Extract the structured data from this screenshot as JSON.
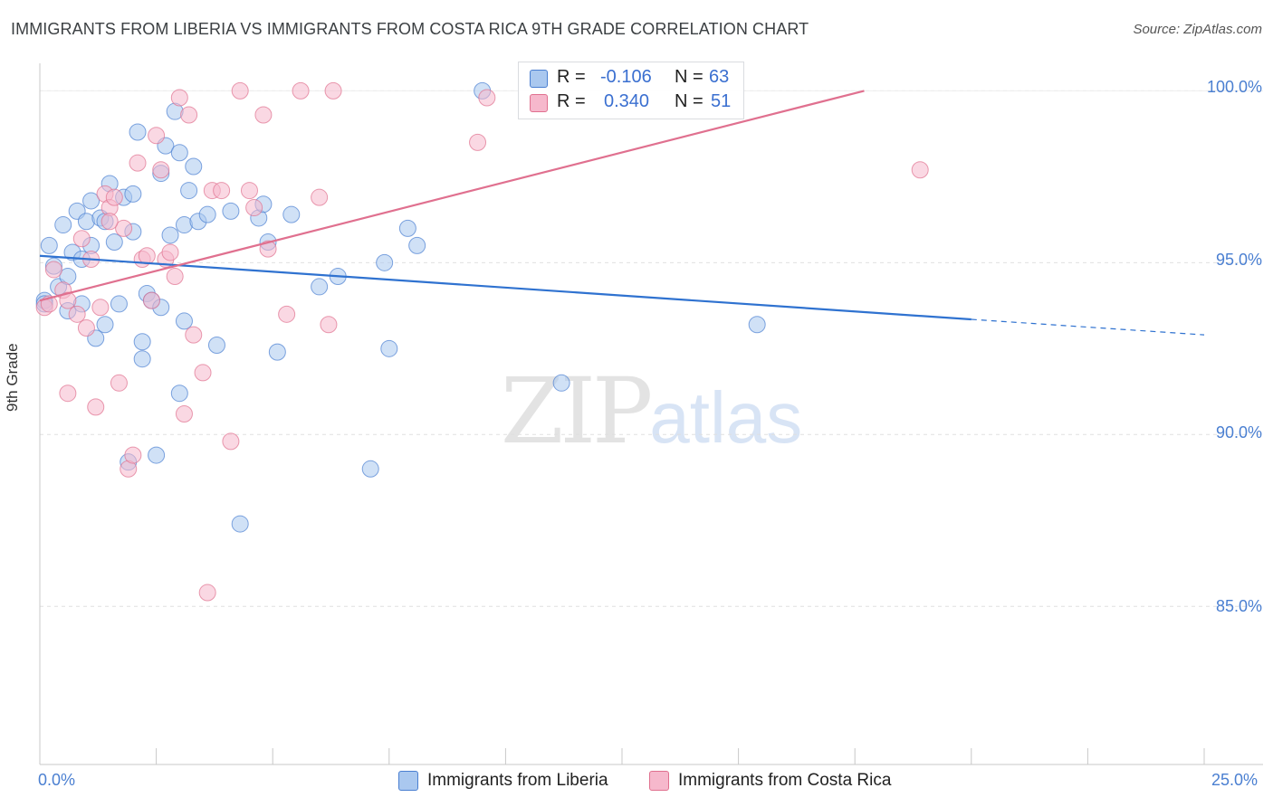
{
  "header": {
    "title": "IMMIGRANTS FROM LIBERIA VS IMMIGRANTS FROM COSTA RICA 9TH GRADE CORRELATION CHART",
    "source": "Source: ZipAtlas.com"
  },
  "watermark": {
    "zip": "ZIP",
    "atlas": "atlas"
  },
  "colors": {
    "blue": "#4a7fd1",
    "blue_fill": "#aac8ef",
    "blue_line": "#2f72d0",
    "pink_fill": "#f6b8cc",
    "pink_line": "#e0708f",
    "grid": "#e0e0e0"
  },
  "legend": {
    "rows": [
      {
        "r_label": "R =",
        "r_value": "-0.106",
        "n_label": "N =",
        "n_value": "63"
      },
      {
        "r_label": "R =",
        "r_value": "0.340",
        "n_label": "N =",
        "n_value": "51"
      }
    ]
  },
  "bottom_legend": {
    "series1": "Immigrants from Liberia",
    "series2": "Immigrants from Costa Rica"
  },
  "chart_data": {
    "type": "scatter",
    "title": "IMMIGRANTS FROM LIBERIA VS IMMIGRANTS FROM COSTA RICA 9TH GRADE CORRELATION CHART",
    "xlabel": "",
    "ylabel": "9th Grade",
    "xlim": [
      0,
      25
    ],
    "ylim": [
      80.4,
      100.8
    ],
    "x_tick_labels": [
      "0.0%",
      "25.0%"
    ],
    "y_ticks": [
      85,
      90,
      95,
      100
    ],
    "y_tick_labels": [
      "85.0%",
      "90.0%",
      "95.0%",
      "100.0%"
    ],
    "legend_position": "top-center",
    "series": [
      {
        "name": "Immigrants from Liberia",
        "r": -0.106,
        "n": 63,
        "trend": {
          "x0": 0.0,
          "y0": 95.2,
          "x1": 20.0,
          "y1": 93.35,
          "dash_to_x": 25.0,
          "dash_to_y": 92.9
        },
        "points": [
          [
            0.1,
            93.9
          ],
          [
            0.1,
            93.8
          ],
          [
            0.2,
            95.5
          ],
          [
            0.3,
            94.9
          ],
          [
            0.4,
            94.3
          ],
          [
            0.5,
            96.1
          ],
          [
            0.6,
            93.6
          ],
          [
            0.6,
            94.6
          ],
          [
            0.7,
            95.3
          ],
          [
            0.8,
            96.5
          ],
          [
            0.9,
            95.1
          ],
          [
            0.9,
            93.8
          ],
          [
            1.0,
            96.2
          ],
          [
            1.1,
            96.8
          ],
          [
            1.1,
            95.5
          ],
          [
            1.2,
            92.8
          ],
          [
            1.3,
            96.3
          ],
          [
            1.4,
            93.2
          ],
          [
            1.4,
            96.2
          ],
          [
            1.5,
            97.3
          ],
          [
            1.6,
            95.6
          ],
          [
            1.7,
            93.8
          ],
          [
            1.8,
            96.9
          ],
          [
            1.9,
            89.2
          ],
          [
            2.0,
            97.0
          ],
          [
            2.0,
            95.9
          ],
          [
            2.1,
            98.8
          ],
          [
            2.2,
            92.2
          ],
          [
            2.2,
            92.7
          ],
          [
            2.3,
            94.1
          ],
          [
            2.4,
            93.9
          ],
          [
            2.5,
            89.4
          ],
          [
            2.6,
            97.6
          ],
          [
            2.6,
            93.7
          ],
          [
            2.7,
            98.4
          ],
          [
            2.8,
            95.8
          ],
          [
            2.9,
            99.4
          ],
          [
            3.0,
            98.2
          ],
          [
            3.0,
            91.2
          ],
          [
            3.1,
            93.3
          ],
          [
            3.1,
            96.1
          ],
          [
            3.2,
            97.1
          ],
          [
            3.3,
            97.8
          ],
          [
            3.4,
            96.2
          ],
          [
            3.6,
            96.4
          ],
          [
            3.8,
            92.6
          ],
          [
            4.1,
            96.5
          ],
          [
            4.3,
            87.4
          ],
          [
            4.7,
            96.3
          ],
          [
            4.8,
            96.7
          ],
          [
            4.9,
            95.6
          ],
          [
            5.1,
            92.4
          ],
          [
            5.4,
            96.4
          ],
          [
            6.0,
            94.3
          ],
          [
            6.4,
            94.6
          ],
          [
            7.1,
            89.0
          ],
          [
            7.4,
            95.0
          ],
          [
            7.5,
            92.5
          ],
          [
            7.9,
            96.0
          ],
          [
            8.1,
            95.5
          ],
          [
            9.5,
            100.0
          ],
          [
            11.2,
            91.5
          ],
          [
            15.4,
            93.2
          ]
        ]
      },
      {
        "name": "Immigrants from Costa Rica",
        "r": 0.34,
        "n": 51,
        "trend": {
          "x0": 0.0,
          "y0": 93.9,
          "x1": 17.7,
          "y1": 100.0
        },
        "points": [
          [
            0.1,
            93.7
          ],
          [
            0.2,
            93.8
          ],
          [
            0.3,
            94.8
          ],
          [
            0.5,
            94.2
          ],
          [
            0.6,
            93.9
          ],
          [
            0.6,
            91.2
          ],
          [
            0.8,
            93.5
          ],
          [
            0.9,
            95.7
          ],
          [
            1.0,
            93.1
          ],
          [
            1.1,
            95.1
          ],
          [
            1.2,
            90.8
          ],
          [
            1.3,
            93.7
          ],
          [
            1.4,
            97.0
          ],
          [
            1.5,
            96.6
          ],
          [
            1.6,
            96.9
          ],
          [
            1.7,
            91.5
          ],
          [
            1.8,
            96.0
          ],
          [
            1.9,
            89.0
          ],
          [
            2.0,
            89.4
          ],
          [
            2.1,
            97.9
          ],
          [
            2.2,
            95.1
          ],
          [
            2.3,
            95.2
          ],
          [
            2.4,
            93.9
          ],
          [
            2.5,
            98.7
          ],
          [
            2.6,
            97.7
          ],
          [
            2.7,
            95.1
          ],
          [
            2.8,
            95.3
          ],
          [
            2.9,
            94.6
          ],
          [
            3.0,
            99.8
          ],
          [
            3.1,
            90.6
          ],
          [
            3.2,
            99.3
          ],
          [
            3.3,
            92.9
          ],
          [
            3.5,
            91.8
          ],
          [
            3.6,
            85.4
          ],
          [
            3.7,
            97.1
          ],
          [
            3.9,
            97.1
          ],
          [
            4.1,
            89.8
          ],
          [
            4.3,
            100.0
          ],
          [
            4.5,
            97.1
          ],
          [
            4.6,
            96.6
          ],
          [
            4.8,
            99.3
          ],
          [
            4.9,
            95.4
          ],
          [
            5.3,
            93.5
          ],
          [
            5.6,
            100.0
          ],
          [
            6.0,
            96.9
          ],
          [
            6.2,
            93.2
          ],
          [
            6.3,
            100.0
          ],
          [
            9.4,
            98.5
          ],
          [
            9.6,
            99.8
          ],
          [
            18.9,
            97.7
          ],
          [
            1.5,
            96.2
          ]
        ]
      }
    ]
  }
}
